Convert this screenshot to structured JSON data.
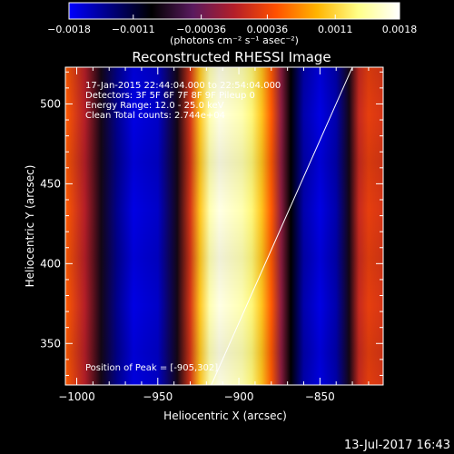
{
  "chart_data": {
    "type": "heatmap",
    "title": "Reconstructed RHESSI Image",
    "xlabel": "Heliocentric X (arcsec)",
    "ylabel": "Heliocentric Y (arcsec)",
    "xlim": [
      -1007,
      -811
    ],
    "ylim": [
      324,
      523
    ],
    "x_ticks": [
      -1000,
      -950,
      -900,
      -850
    ],
    "x_tick_labels": [
      "−1000",
      "−950",
      "−900",
      "−850"
    ],
    "y_ticks": [
      350,
      400,
      450,
      500
    ],
    "y_tick_labels": [
      "350",
      "400",
      "450",
      "500"
    ],
    "colorbar": {
      "range": [
        -0.0018,
        0.0018
      ],
      "ticks": [
        -0.0018,
        -0.0011,
        -0.00036,
        0.00036,
        0.0011,
        0.0018
      ],
      "tick_labels": [
        "−0.0018",
        "−0.0011",
        "−0.00036",
        "0.00036",
        "0.0011",
        "0.0018"
      ],
      "unit_label": "(photons cm⁻² s⁻¹ asec⁻²)",
      "colors": [
        "#0000ff",
        "#000080",
        "#000000",
        "#5a1a5e",
        "#b41e28",
        "#ff5000",
        "#ffb400",
        "#ffff88",
        "#ffffff"
      ]
    },
    "x_profile": {
      "x": [
        -1007,
        -995,
        -985,
        -975,
        -965,
        -950,
        -938,
        -930,
        -924,
        -918,
        -912,
        -905,
        -898,
        -892,
        -886,
        -880,
        -874,
        -868,
        -860,
        -850,
        -840,
        -832,
        -826,
        -820,
        -811
      ],
      "values": [
        0.0005,
        0.0,
        -0.0008,
        -0.0014,
        -0.0017,
        -0.0016,
        -0.0008,
        0.0002,
        0.001,
        0.0015,
        0.0017,
        0.0016,
        0.0015,
        0.0013,
        0.001,
        0.0005,
        -0.0002,
        -0.0009,
        -0.0015,
        -0.0017,
        -0.0015,
        -0.0008,
        0.0001,
        0.0003,
        0.0002
      ]
    },
    "limb_line": {
      "x": [
        -917,
        -830
      ],
      "y": [
        324,
        523
      ]
    },
    "annotations": [
      "17-Jan-2015 22:44:04.000 to 22:54:04.000",
      "Detectors: 3F 5F 6F 7F 8F 9F Pileup 0",
      "Energy Range: 12.0 - 25.0 keV",
      "Clean     Total counts: 2.744e+04",
      "Position of Peak = [-905,302]"
    ],
    "timestamp": "13-Jul-2017 16:43"
  }
}
